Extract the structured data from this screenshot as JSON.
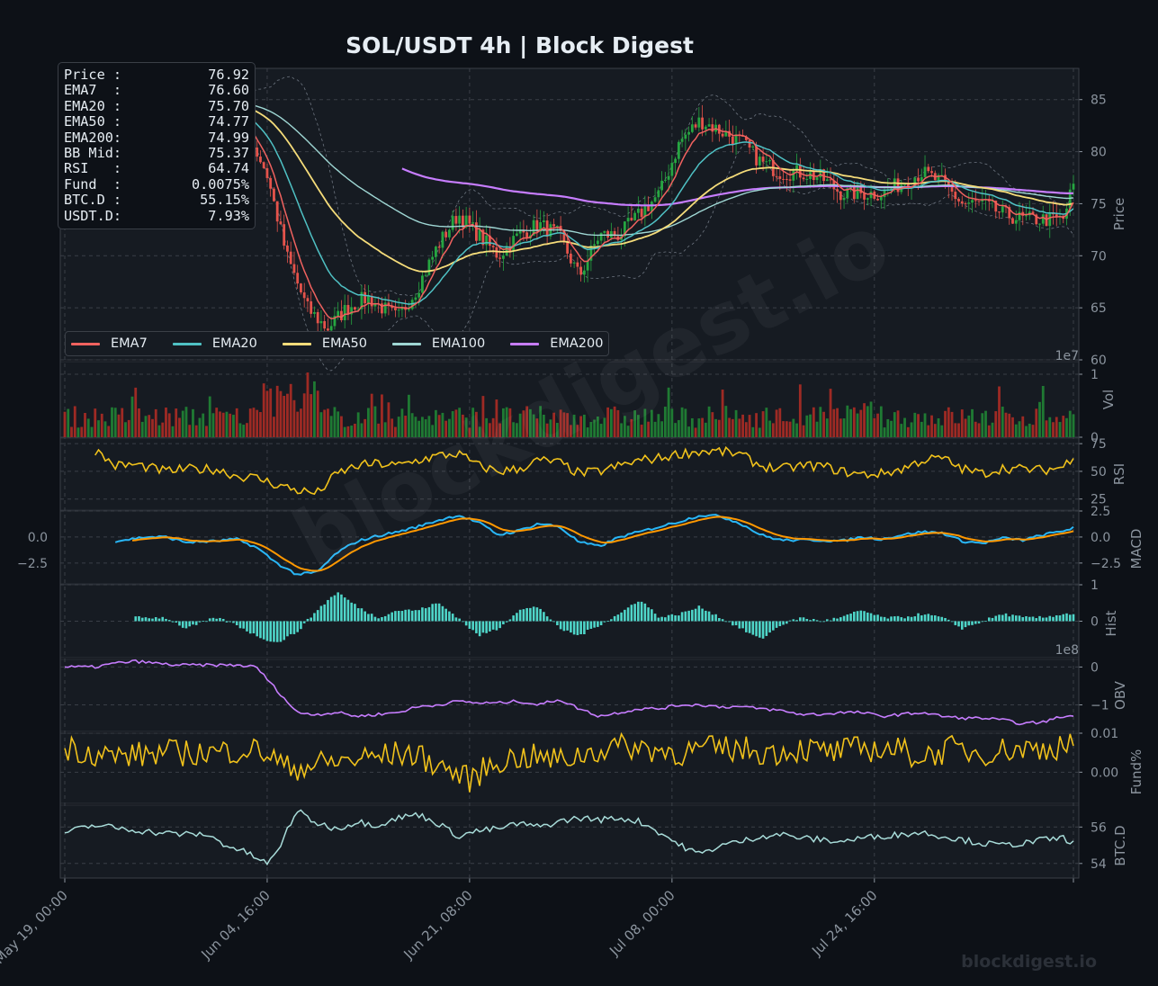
{
  "title": "SOL/USDT  4h  |  Block Digest",
  "watermark": "blockdigest.io",
  "info_box": [
    {
      "label": "Price :",
      "value": "76.92"
    },
    {
      "label": "EMA7  :",
      "value": "76.60"
    },
    {
      "label": "EMA20 :",
      "value": "75.70"
    },
    {
      "label": "EMA50 :",
      "value": "74.77"
    },
    {
      "label": "EMA200:",
      "value": "74.99"
    },
    {
      "label": "BB Mid:",
      "value": "75.37"
    },
    {
      "label": "RSI   :",
      "value": "64.74"
    },
    {
      "label": "Fund  :",
      "value": "0.0075%"
    },
    {
      "label": "BTC.D :",
      "value": "55.15%"
    },
    {
      "label": "USDT.D:",
      "value": "7.93%"
    }
  ],
  "colors": {
    "background": "#0d1117",
    "panel": "#161b22",
    "up": "#26a641",
    "down": "#e5534b",
    "ema7": "#f0625f",
    "ema20": "#4fc1c4",
    "ema50": "#f5dc7a",
    "ema100": "#9fd7d4",
    "ema200": "#c77dff",
    "rsi": "#f1c21b",
    "macd": "#29b6f6",
    "signal": "#ff9800",
    "hist": "#4fd6c9",
    "obv": "#c77dff",
    "fund": "#f1c21b",
    "btcd": "#a8dcd9"
  },
  "chart_data": {
    "type": "line",
    "x_ticks": [
      "May 19, 00:00",
      "Jun 04, 16:00",
      "Jun 21, 08:00",
      "Jul 08, 00:00",
      "Jul 24, 16:00"
    ],
    "legend": [
      "EMA7",
      "EMA20",
      "EMA50",
      "EMA100",
      "EMA200"
    ],
    "panels": [
      {
        "name": "price",
        "ylabel": "Price",
        "ylim": [
          60,
          88
        ],
        "ticks": [
          "60",
          "65",
          "70",
          "75",
          "80",
          "85"
        ]
      },
      {
        "name": "vol",
        "ylabel": "Vol",
        "ylim": [
          0,
          1.2
        ],
        "ticks": [
          "0",
          "1"
        ],
        "offset_text": "1e7"
      },
      {
        "name": "rsi",
        "ylabel": "RSI",
        "ylim": [
          15,
          80
        ],
        "ticks": [
          "25",
          "50",
          "75"
        ]
      },
      {
        "name": "macd",
        "ylabel": "MACD",
        "ylim": [
          -4.5,
          2.5
        ],
        "ticks": [
          "−2.5",
          "0.0",
          "2.5"
        ],
        "left_ticks": [
          "−2.5",
          "0.0"
        ]
      },
      {
        "name": "hist",
        "ylabel": "Hist",
        "ylim": [
          -1,
          1
        ],
        "ticks": [
          "0",
          "1"
        ]
      },
      {
        "name": "obv",
        "ylabel": "OBV",
        "ylim": [
          -1.7,
          0.2
        ],
        "ticks": [
          "−1",
          "0"
        ],
        "offset_text": "1e8"
      },
      {
        "name": "fund",
        "ylabel": "Fund%",
        "ylim": [
          -0.008,
          0.01
        ],
        "ticks": [
          "0.00",
          "0.01"
        ]
      },
      {
        "name": "btcd",
        "ylabel": "BTC.D",
        "ylim": [
          53.2,
          57.2
        ],
        "ticks": [
          "54",
          "56"
        ]
      }
    ],
    "price_anchors": [
      [
        0,
        85.5
      ],
      [
        5,
        86
      ],
      [
        10,
        85
      ],
      [
        15,
        84
      ],
      [
        18,
        82
      ],
      [
        20,
        78
      ],
      [
        22,
        70
      ],
      [
        24,
        65
      ],
      [
        26,
        63
      ],
      [
        28,
        65
      ],
      [
        30,
        66
      ],
      [
        33,
        64
      ],
      [
        35,
        67
      ],
      [
        37,
        71
      ],
      [
        39,
        74
      ],
      [
        41,
        72
      ],
      [
        43,
        70
      ],
      [
        45,
        72
      ],
      [
        47,
        73
      ],
      [
        49,
        72
      ],
      [
        51,
        68
      ],
      [
        53,
        72
      ],
      [
        55,
        72
      ],
      [
        57,
        74
      ],
      [
        59,
        76
      ],
      [
        61,
        81
      ],
      [
        63,
        83
      ],
      [
        65,
        82
      ],
      [
        67,
        81
      ],
      [
        69,
        79
      ],
      [
        71,
        78
      ],
      [
        73,
        78
      ],
      [
        75,
        77.5
      ],
      [
        77,
        76
      ],
      [
        79,
        76
      ],
      [
        81,
        76
      ],
      [
        83,
        77
      ],
      [
        85,
        78
      ],
      [
        87,
        77
      ],
      [
        89,
        75
      ],
      [
        91,
        75
      ],
      [
        93,
        74
      ],
      [
        95,
        73.5
      ],
      [
        97,
        73.5
      ],
      [
        99,
        73.5
      ],
      [
        100,
        76.9
      ]
    ],
    "ema_last": {
      "EMA7": 76.6,
      "EMA20": 75.7,
      "EMA50": 74.77,
      "EMA100": 75.2,
      "EMA200": 74.99
    },
    "rsi_anchors": [
      [
        3,
        69
      ],
      [
        5,
        55
      ],
      [
        7,
        56
      ],
      [
        10,
        50
      ],
      [
        12,
        52
      ],
      [
        15,
        52
      ],
      [
        17,
        46
      ],
      [
        19,
        44
      ],
      [
        21,
        38
      ],
      [
        23,
        33
      ],
      [
        25,
        30
      ],
      [
        27,
        48
      ],
      [
        29,
        55
      ],
      [
        31,
        57
      ],
      [
        33,
        55
      ],
      [
        35,
        60
      ],
      [
        37,
        64
      ],
      [
        39,
        66
      ],
      [
        41,
        55
      ],
      [
        43,
        50
      ],
      [
        45,
        52
      ],
      [
        47,
        60
      ],
      [
        49,
        58
      ],
      [
        51,
        48
      ],
      [
        53,
        50
      ],
      [
        55,
        55
      ],
      [
        57,
        60
      ],
      [
        59,
        62
      ],
      [
        61,
        66
      ],
      [
        63,
        68
      ],
      [
        65,
        68
      ],
      [
        67,
        65
      ],
      [
        69,
        55
      ],
      [
        71,
        52
      ],
      [
        73,
        55
      ],
      [
        75,
        55
      ],
      [
        77,
        50
      ],
      [
        79,
        47
      ],
      [
        81,
        48
      ],
      [
        83,
        52
      ],
      [
        85,
        60
      ],
      [
        87,
        62
      ],
      [
        89,
        52
      ],
      [
        91,
        48
      ],
      [
        93,
        53
      ],
      [
        95,
        52
      ],
      [
        97,
        51
      ],
      [
        99,
        54
      ],
      [
        100,
        64.7
      ]
    ],
    "macd_anchors": [
      [
        5,
        -0.4
      ],
      [
        8,
        0.0
      ],
      [
        10,
        0.0
      ],
      [
        12,
        -0.5
      ],
      [
        15,
        -0.4
      ],
      [
        17,
        -0.2
      ],
      [
        19,
        -1.0
      ],
      [
        21,
        -2.5
      ],
      [
        23,
        -3.6
      ],
      [
        25,
        -3.4
      ],
      [
        27,
        -1.5
      ],
      [
        29,
        -0.4
      ],
      [
        31,
        0.1
      ],
      [
        33,
        0.5
      ],
      [
        35,
        1.0
      ],
      [
        37,
        1.6
      ],
      [
        39,
        2.1
      ],
      [
        41,
        1.4
      ],
      [
        43,
        0.2
      ],
      [
        45,
        0.6
      ],
      [
        47,
        1.3
      ],
      [
        49,
        1.0
      ],
      [
        51,
        -0.5
      ],
      [
        53,
        -0.9
      ],
      [
        55,
        0.0
      ],
      [
        57,
        0.5
      ],
      [
        59,
        1.0
      ],
      [
        61,
        1.5
      ],
      [
        63,
        2.1
      ],
      [
        65,
        2.0
      ],
      [
        67,
        1.3
      ],
      [
        69,
        0.2
      ],
      [
        71,
        -0.3
      ],
      [
        73,
        -0.3
      ],
      [
        75,
        -0.3
      ],
      [
        77,
        -0.4
      ],
      [
        79,
        0.0
      ],
      [
        81,
        -0.2
      ],
      [
        83,
        0.2
      ],
      [
        85,
        0.5
      ],
      [
        87,
        0.4
      ],
      [
        89,
        -0.4
      ],
      [
        91,
        -0.6
      ],
      [
        93,
        -0.1
      ],
      [
        95,
        -0.3
      ],
      [
        97,
        0.2
      ],
      [
        99,
        0.6
      ],
      [
        100,
        0.9
      ]
    ],
    "hist_anchors": [
      [
        7,
        0.1
      ],
      [
        10,
        0.1
      ],
      [
        12,
        -0.2
      ],
      [
        15,
        0.1
      ],
      [
        17,
        -0.1
      ],
      [
        19,
        -0.4
      ],
      [
        21,
        -0.6
      ],
      [
        23,
        -0.3
      ],
      [
        25,
        0.3
      ],
      [
        27,
        0.8
      ],
      [
        29,
        0.4
      ],
      [
        31,
        0.1
      ],
      [
        33,
        0.3
      ],
      [
        35,
        0.3
      ],
      [
        37,
        0.5
      ],
      [
        39,
        0.1
      ],
      [
        41,
        -0.4
      ],
      [
        43,
        -0.2
      ],
      [
        45,
        0.3
      ],
      [
        47,
        0.4
      ],
      [
        49,
        -0.2
      ],
      [
        51,
        -0.4
      ],
      [
        53,
        -0.1
      ],
      [
        55,
        0.2
      ],
      [
        57,
        0.6
      ],
      [
        59,
        0.1
      ],
      [
        61,
        0.2
      ],
      [
        63,
        0.4
      ],
      [
        65,
        0.1
      ],
      [
        67,
        -0.2
      ],
      [
        69,
        -0.5
      ],
      [
        71,
        -0.1
      ],
      [
        73,
        0.1
      ],
      [
        75,
        0.0
      ],
      [
        77,
        0.1
      ],
      [
        79,
        0.3
      ],
      [
        81,
        0.1
      ],
      [
        83,
        0.1
      ],
      [
        85,
        0.2
      ],
      [
        87,
        0.1
      ],
      [
        89,
        -0.2
      ],
      [
        91,
        0.0
      ],
      [
        93,
        0.2
      ],
      [
        95,
        0.1
      ],
      [
        97,
        0.1
      ],
      [
        99,
        0.2
      ],
      [
        100,
        0.2
      ]
    ],
    "obv_anchors": [
      [
        0,
        0.0
      ],
      [
        3,
        0.0
      ],
      [
        5,
        0.1
      ],
      [
        7,
        0.15
      ],
      [
        9,
        0.1
      ],
      [
        11,
        0.05
      ],
      [
        14,
        0.05
      ],
      [
        17,
        0.05
      ],
      [
        19,
        0.0
      ],
      [
        21,
        -0.6
      ],
      [
        23,
        -1.2
      ],
      [
        25,
        -1.25
      ],
      [
        27,
        -1.2
      ],
      [
        29,
        -1.3
      ],
      [
        31,
        -1.25
      ],
      [
        33,
        -1.2
      ],
      [
        35,
        -1.05
      ],
      [
        37,
        -1.0
      ],
      [
        39,
        -0.9
      ],
      [
        41,
        -0.95
      ],
      [
        43,
        -0.95
      ],
      [
        45,
        -0.9
      ],
      [
        47,
        -1.0
      ],
      [
        49,
        -0.85
      ],
      [
        51,
        -1.1
      ],
      [
        53,
        -1.3
      ],
      [
        55,
        -1.2
      ],
      [
        57,
        -1.1
      ],
      [
        59,
        -1.1
      ],
      [
        61,
        -1.0
      ],
      [
        63,
        -1.0
      ],
      [
        65,
        -1.05
      ],
      [
        67,
        -1.05
      ],
      [
        69,
        -1.1
      ],
      [
        71,
        -1.15
      ],
      [
        73,
        -1.25
      ],
      [
        75,
        -1.25
      ],
      [
        77,
        -1.2
      ],
      [
        79,
        -1.2
      ],
      [
        81,
        -1.3
      ],
      [
        83,
        -1.25
      ],
      [
        85,
        -1.2
      ],
      [
        87,
        -1.3
      ],
      [
        89,
        -1.35
      ],
      [
        91,
        -1.35
      ],
      [
        93,
        -1.4
      ],
      [
        95,
        -1.5
      ],
      [
        97,
        -1.45
      ],
      [
        99,
        -1.3
      ],
      [
        100,
        -1.3
      ]
    ],
    "fund_anchors": [
      [
        0,
        0.0065
      ],
      [
        5,
        0.004
      ],
      [
        10,
        0.005
      ],
      [
        15,
        0.005
      ],
      [
        18,
        0.006
      ],
      [
        20,
        0.005
      ],
      [
        22,
        0.001
      ],
      [
        25,
        0.002
      ],
      [
        28,
        0.003
      ],
      [
        31,
        0.004
      ],
      [
        34,
        0.005
      ],
      [
        37,
        0.002
      ],
      [
        40,
        -0.002
      ],
      [
        43,
        0.003
      ],
      [
        46,
        0.004
      ],
      [
        49,
        0.003
      ],
      [
        52,
        0.005
      ],
      [
        55,
        0.007
      ],
      [
        58,
        0.006
      ],
      [
        61,
        0.005
      ],
      [
        64,
        0.006
      ],
      [
        67,
        0.006
      ],
      [
        70,
        0.005
      ],
      [
        73,
        0.006
      ],
      [
        76,
        0.005
      ],
      [
        79,
        0.006
      ],
      [
        82,
        0.006
      ],
      [
        85,
        0.004
      ],
      [
        88,
        0.006
      ],
      [
        91,
        0.005
      ],
      [
        94,
        0.006
      ],
      [
        97,
        0.006
      ],
      [
        100,
        0.0075
      ]
    ],
    "btcd_anchors": [
      [
        0,
        55.7
      ],
      [
        3,
        56.1
      ],
      [
        6,
        55.9
      ],
      [
        9,
        55.7
      ],
      [
        12,
        55.6
      ],
      [
        14,
        55.6
      ],
      [
        16,
        55.0
      ],
      [
        18,
        54.6
      ],
      [
        20,
        54.0
      ],
      [
        21,
        54.5
      ],
      [
        22,
        55.8
      ],
      [
        23,
        56.9
      ],
      [
        25,
        56.2
      ],
      [
        27,
        55.9
      ],
      [
        29,
        56.3
      ],
      [
        31,
        56.1
      ],
      [
        33,
        56.5
      ],
      [
        35,
        56.7
      ],
      [
        37,
        56.2
      ],
      [
        39,
        55.5
      ],
      [
        41,
        55.8
      ],
      [
        43,
        55.9
      ],
      [
        45,
        56.2
      ],
      [
        47,
        56.0
      ],
      [
        49,
        56.3
      ],
      [
        51,
        56.5
      ],
      [
        53,
        56.4
      ],
      [
        55,
        56.5
      ],
      [
        57,
        56.3
      ],
      [
        59,
        55.7
      ],
      [
        61,
        55.0
      ],
      [
        63,
        54.5
      ],
      [
        65,
        55.0
      ],
      [
        67,
        55.2
      ],
      [
        69,
        55.5
      ],
      [
        71,
        55.6
      ],
      [
        73,
        55.4
      ],
      [
        75,
        55.3
      ],
      [
        77,
        55.2
      ],
      [
        79,
        55.4
      ],
      [
        81,
        55.5
      ],
      [
        83,
        55.6
      ],
      [
        85,
        55.7
      ],
      [
        87,
        55.5
      ],
      [
        89,
        55.3
      ],
      [
        91,
        55.1
      ],
      [
        93,
        55.0
      ],
      [
        95,
        55.1
      ],
      [
        97,
        55.3
      ],
      [
        99,
        55.4
      ],
      [
        100,
        55.15
      ]
    ]
  }
}
